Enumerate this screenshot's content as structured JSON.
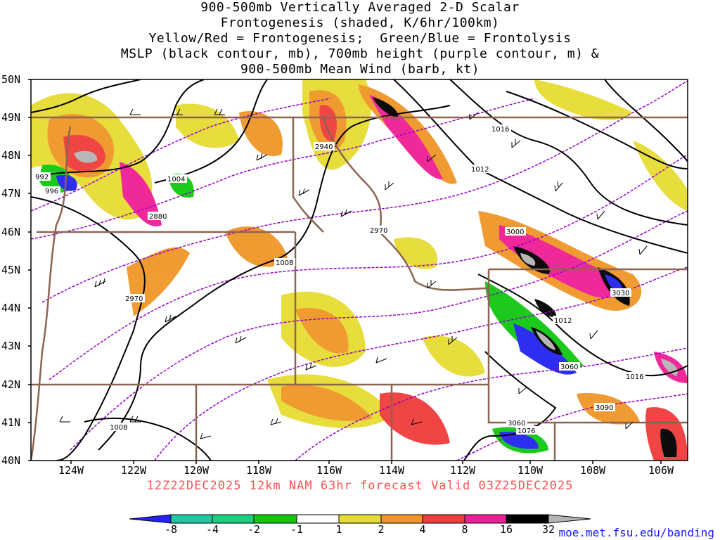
{
  "title_lines": [
    "900-500mb Vertically Averaged 2-D Scalar",
    "Frontogenesis (shaded, K/6hr/100km)",
    "Yellow/Red = Frontogenesis;  Green/Blue = Frontolysis",
    "MSLP (black contour, mb), 700mb height (purple contour, m) &",
    "900-500mb Mean Wind (barb, kt)"
  ],
  "forecast_line": "12Z22DEC2025 12km NAM 63hr forecast Valid 03Z25DEC2025",
  "credit": "moe.met.fsu.edu/banding",
  "lat_labels": [
    "50N",
    "49N",
    "48N",
    "47N",
    "46N",
    "45N",
    "44N",
    "43N",
    "42N",
    "41N",
    "40N"
  ],
  "lon_labels": [
    "124W",
    "122W",
    "120W",
    "118W",
    "116W",
    "114W",
    "112W",
    "110W",
    "108W",
    "106W"
  ],
  "colorbar": {
    "labels": [
      "-8",
      "-4",
      "-2",
      "-1",
      "1",
      "2",
      "4",
      "8",
      "16",
      "32"
    ],
    "colors": [
      "#2323f0",
      "#1fc8a0",
      "#18d080",
      "#10c810",
      "#ffffff",
      "#e6dc32",
      "#f09628",
      "#f03c3c",
      "#f01e96",
      "#000000",
      "#b4b4b4"
    ]
  },
  "mslp_labels": [
    "992",
    "996",
    "1004",
    "1016",
    "1012",
    "1008",
    "1012",
    "1016",
    "1008",
    "1076"
  ],
  "height_labels": [
    "2940",
    "2880",
    "2970",
    "2970",
    "3000",
    "3030",
    "3060",
    "3090",
    "3060"
  ],
  "colors": {
    "frontogenesis_weak": "#e6dc32",
    "frontogenesis_moderate": "#f09628",
    "frontogenesis_strong": "#f03c3c",
    "frontogenesis_very_strong": "#f01e96",
    "frontolysis_weak": "#10c810",
    "frontolysis_strong": "#2323f0",
    "mslp_contour": "#000000",
    "height_contour": "#9600c8",
    "state_borders": "#8c6450"
  }
}
